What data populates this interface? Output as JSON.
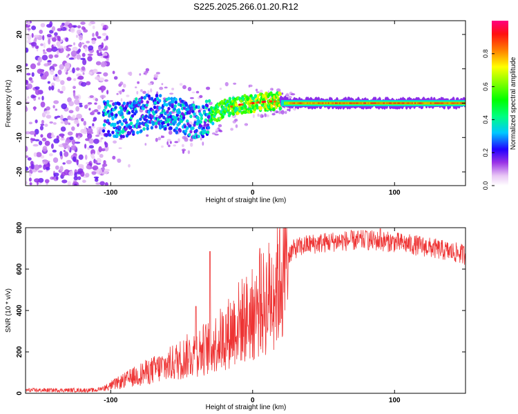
{
  "title": "S225.2025.266.01.20.R12",
  "chart_data": [
    {
      "type": "heatmap",
      "xlabel": "Height of straight line (km)",
      "ylabel": "Frequency (Hz)",
      "xlim": [
        -160,
        150
      ],
      "ylim": [
        -24,
        24
      ],
      "xticks": [
        -100,
        0,
        100
      ],
      "yticks": [
        -20,
        -10,
        0,
        10,
        20
      ],
      "colorbar": {
        "label": "Normalized spectral amplitude",
        "range": [
          0.0,
          1.0
        ],
        "ticks": [
          0.0,
          0.2,
          0.4,
          0.6,
          0.8
        ]
      },
      "ridge": [
        {
          "x": -100,
          "f": -4.5
        },
        {
          "x": -90,
          "f": -5
        },
        {
          "x": -80,
          "f": -3.5
        },
        {
          "x": -70,
          "f": -2
        },
        {
          "x": -60,
          "f": -3
        },
        {
          "x": -50,
          "f": -4
        },
        {
          "x": -40,
          "f": -5.5
        },
        {
          "x": -30,
          "f": -4
        },
        {
          "x": -20,
          "f": -1.5
        },
        {
          "x": -10,
          "f": -0.5
        },
        {
          "x": 0,
          "f": 0
        },
        {
          "x": 10,
          "f": 0.5
        },
        {
          "x": 20,
          "f": 0.5
        },
        {
          "x": 30,
          "f": 0
        },
        {
          "x": 150,
          "f": 0
        }
      ]
    },
    {
      "type": "line",
      "xlabel": "Height of straight line (km)",
      "ylabel": "SNR (10 * v/v)",
      "xlim": [
        -160,
        150
      ],
      "ylim": [
        0,
        800
      ],
      "xticks": [
        -100,
        0,
        100
      ],
      "yticks": [
        0,
        200,
        400,
        600,
        800
      ],
      "series": [
        {
          "name": "SNR",
          "color": "#ee3333",
          "envelope_x": [
            -160,
            -110,
            -100,
            -80,
            -60,
            -40,
            -30,
            -20,
            -10,
            0,
            10,
            20,
            30,
            40,
            60,
            80,
            100,
            120,
            150
          ],
          "envelope_y": [
            15,
            15,
            40,
            100,
            150,
            220,
            250,
            300,
            380,
            420,
            500,
            640,
            700,
            720,
            735,
            740,
            730,
            710,
            670
          ],
          "peaks": [
            {
              "x": -30,
              "y": 685
            },
            {
              "x": -40,
              "y": 420
            },
            {
              "x": 5,
              "y": 700
            },
            {
              "x": 90,
              "y": 795
            },
            {
              "x": 80,
              "y": 780
            }
          ]
        }
      ]
    }
  ]
}
